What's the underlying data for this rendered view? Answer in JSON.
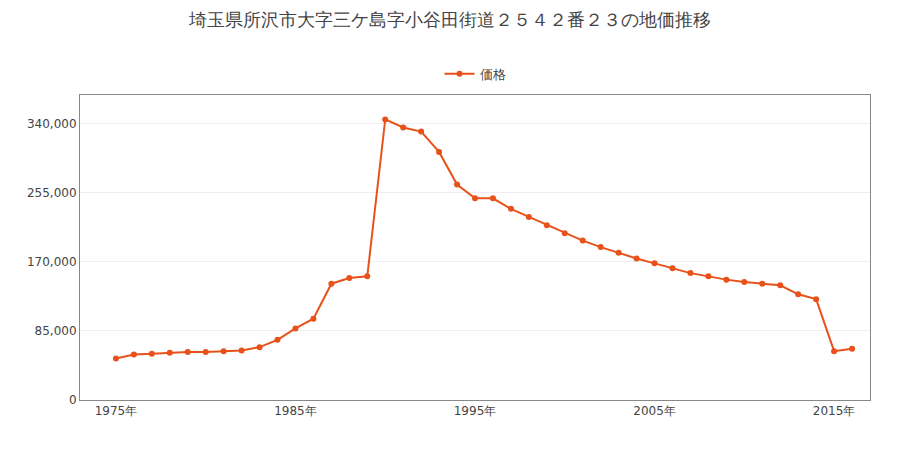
{
  "chart_data": {
    "type": "line",
    "title": "埼玉県所沢市大字三ケ島字小谷田街道２５４２番２３の地価推移",
    "x": [
      1975,
      1976,
      1977,
      1978,
      1979,
      1980,
      1981,
      1982,
      1983,
      1984,
      1985,
      1986,
      1987,
      1988,
      1989,
      1990,
      1991,
      1992,
      1993,
      1994,
      1995,
      1996,
      1997,
      1998,
      1999,
      2000,
      2001,
      2002,
      2003,
      2004,
      2005,
      2006,
      2007,
      2008,
      2009,
      2010,
      2011,
      2012,
      2013,
      2014,
      2015,
      2016
    ],
    "series": [
      {
        "name": "価格",
        "color": "#E8521A",
        "marker": "circle",
        "values": [
          51000,
          56000,
          57000,
          58000,
          59000,
          59000,
          60000,
          61000,
          65000,
          74000,
          88000,
          100000,
          143000,
          150000,
          152000,
          345000,
          335000,
          330000,
          305000,
          265000,
          248000,
          248000,
          235000,
          225000,
          215000,
          205000,
          196000,
          188000,
          181000,
          174000,
          168000,
          162000,
          156000,
          152000,
          148000,
          145000,
          143000,
          141000,
          130000,
          124000,
          60000,
          63000
        ]
      }
    ],
    "xlim": [
      1973,
      2017
    ],
    "xticks": [
      {
        "value": 1975,
        "label": "1975年"
      },
      {
        "value": 1985,
        "label": "1985年"
      },
      {
        "value": 1995,
        "label": "1995年"
      },
      {
        "value": 2005,
        "label": "2005年"
      },
      {
        "value": 2015,
        "label": "2015年"
      }
    ],
    "ylim": [
      0,
      375000
    ],
    "yticks": [
      0,
      {
        "value": 85000,
        "label": "85,000"
      },
      {
        "value": 170000,
        "label": "170,000"
      },
      {
        "value": 255000,
        "label": "255,000"
      },
      {
        "value": 340000,
        "label": "340,000"
      }
    ],
    "grid": "y",
    "legend": "top"
  }
}
